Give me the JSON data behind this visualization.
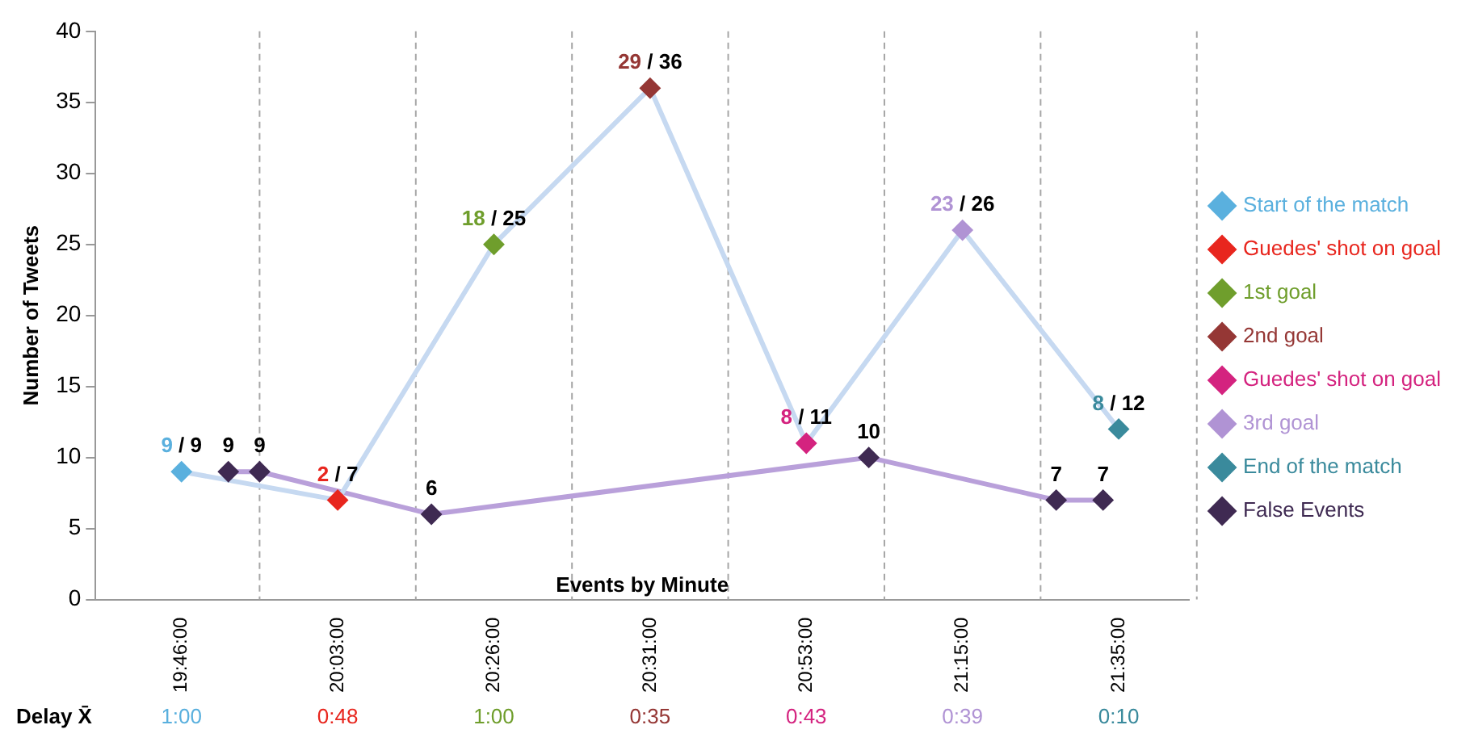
{
  "chart_data": {
    "type": "line",
    "ylabel": "Number of Tweets",
    "xlabel": "Events by Minute",
    "ylim": [
      0,
      40
    ],
    "yticks": [
      0,
      5,
      10,
      15,
      20,
      25,
      30,
      35,
      40
    ],
    "categories": [
      null,
      null,
      null,
      null,
      null,
      "19:46:00",
      null,
      null,
      null,
      null,
      null,
      null,
      null,
      null,
      null,
      "20:03:00",
      null,
      null,
      null,
      null,
      null,
      null,
      null,
      null,
      null,
      "20:26:00",
      null,
      null,
      null,
      null,
      null,
      null,
      null,
      null,
      null,
      "20:31:00",
      null,
      null,
      null,
      null,
      null,
      null,
      null,
      null,
      null,
      "20:53:00",
      null,
      null,
      null,
      null,
      null,
      null,
      null,
      null,
      null,
      "21:15:00",
      null,
      null,
      null,
      null,
      null,
      null,
      null,
      null,
      null,
      "21:35:00",
      null,
      null,
      null,
      null
    ],
    "grid": "x",
    "legend": "right",
    "marker": "diamond",
    "series": [
      {
        "type": "line",
        "marker": "none",
        "color": "#c6d9f1",
        "values": [
          null,
          null,
          null,
          null,
          null,
          9,
          null,
          null,
          null,
          null,
          null,
          null,
          null,
          null,
          null,
          7,
          null,
          null,
          null,
          null,
          null,
          null,
          null,
          null,
          null,
          25,
          null,
          null,
          null,
          null,
          null,
          null,
          null,
          null,
          null,
          36,
          null,
          null,
          null,
          null,
          null,
          null,
          null,
          null,
          null,
          11,
          null,
          null,
          null,
          null,
          null,
          null,
          null,
          null,
          null,
          26,
          null,
          null,
          null,
          null,
          null,
          null,
          null,
          null,
          null,
          12,
          null,
          null,
          null,
          null
        ]
      },
      {
        "type": "line",
        "marker": "none",
        "color": "#b9a0da",
        "values": [
          null,
          null,
          null,
          null,
          null,
          null,
          null,
          null,
          9,
          null,
          9,
          null,
          null,
          null,
          null,
          null,
          null,
          null,
          null,
          null,
          null,
          6,
          null,
          null,
          null,
          null,
          null,
          null,
          null,
          null,
          null,
          null,
          null,
          null,
          null,
          null,
          null,
          null,
          null,
          null,
          null,
          null,
          null,
          null,
          null,
          null,
          null,
          null,
          null,
          10,
          null,
          null,
          null,
          null,
          null,
          null,
          null,
          null,
          null,
          null,
          null,
          7,
          null,
          null,
          7,
          null,
          null,
          null,
          null,
          null
        ]
      },
      {
        "type": "scatter",
        "name": "Start of the match",
        "color": "#5ab0de",
        "x": [
          "19:46:00"
        ],
        "values": [
          9
        ]
      },
      {
        "type": "scatter",
        "name": "Guedes' shot on goal",
        "color": "#e8261e",
        "x": [
          "20:03:00"
        ],
        "values": [
          7
        ]
      },
      {
        "type": "scatter",
        "name": "1st goal",
        "color": "#6f9e2c",
        "x": [
          "20:26:00"
        ],
        "values": [
          25
        ]
      },
      {
        "type": "scatter",
        "name": "2nd goal",
        "color": "#953735",
        "x": [
          "20:31:00"
        ],
        "values": [
          36
        ]
      },
      {
        "type": "scatter",
        "name": "Guedes' shot on goal",
        "color": "#d4237f",
        "x": [
          "20:53:00"
        ],
        "values": [
          11
        ]
      },
      {
        "type": "scatter",
        "name": "3rd goal",
        "color": "#b093d4",
        "x": [
          "21:15:00"
        ],
        "values": [
          26
        ]
      },
      {
        "type": "scatter",
        "name": "End of the match",
        "color": "#3a8a9c",
        "x": [
          "21:35:00"
        ],
        "values": [
          12
        ]
      },
      {
        "type": "scatter",
        "name": "False Events",
        "color": "#3f2a52",
        "values": [
          null,
          null,
          null,
          null,
          null,
          null,
          null,
          null,
          9,
          null,
          9,
          null,
          null,
          null,
          null,
          null,
          null,
          null,
          null,
          null,
          null,
          6,
          null,
          null,
          null,
          null,
          null,
          null,
          null,
          null,
          null,
          null,
          null,
          null,
          null,
          null,
          null,
          null,
          null,
          null,
          null,
          null,
          null,
          null,
          null,
          null,
          null,
          null,
          null,
          10,
          null,
          null,
          null,
          null,
          null,
          null,
          null,
          null,
          null,
          null,
          null,
          7,
          null,
          null,
          7,
          null,
          null,
          null,
          null,
          null
        ],
        "value_labels": [
          null,
          null,
          null,
          null,
          null,
          null,
          null,
          null,
          "9",
          null,
          "9",
          null,
          null,
          null,
          null,
          null,
          null,
          null,
          null,
          null,
          null,
          "6",
          null,
          null,
          null,
          null,
          null,
          null,
          null,
          null,
          null,
          null,
          null,
          null,
          null,
          null,
          null,
          null,
          null,
          null,
          null,
          null,
          null,
          null,
          null,
          null,
          null,
          null,
          null,
          "10",
          null,
          null,
          null,
          null,
          null,
          null,
          null,
          null,
          null,
          null,
          null,
          "7",
          null,
          null,
          "7",
          null,
          null,
          null,
          null,
          null
        ]
      }
    ],
    "annotations": [
      {
        "text": "9 / 9",
        "x": "19:46:00",
        "y": 9
      },
      {
        "text": "2 / 7",
        "x": "20:03:00",
        "y": 7
      },
      {
        "text": "18 / 25",
        "x": "20:26:00",
        "y": 25
      },
      {
        "text": "29 / 36",
        "x": "20:31:00",
        "y": 36
      },
      {
        "text": "8 / 11",
        "x": "20:53:00",
        "y": 11
      },
      {
        "text": "23 / 26",
        "x": "21:15:00",
        "y": 26
      },
      {
        "text": "8 / 12",
        "x": "21:35:00",
        "y": 12
      },
      "Delay X̄",
      "1:00",
      "0:48",
      "1:00",
      "0:35",
      "0:43",
      "0:39",
      "0:10"
    ]
  }
}
